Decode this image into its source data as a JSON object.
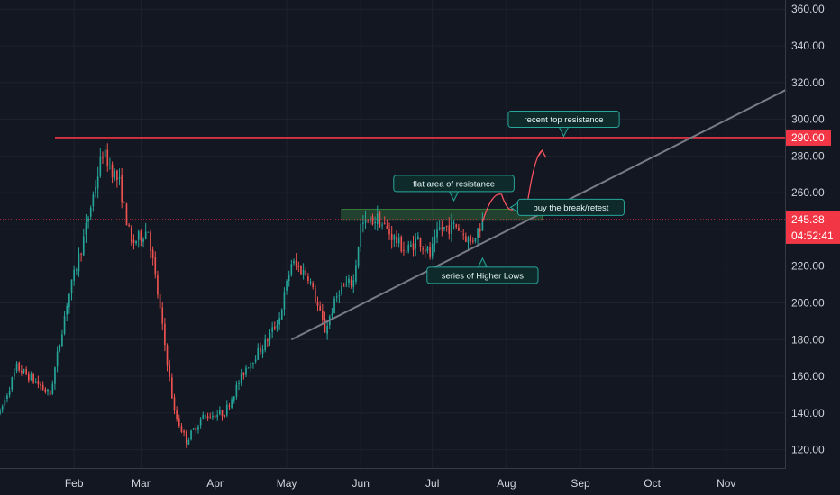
{
  "chart_data": {
    "type": "candlestick",
    "ylim": [
      110,
      365
    ],
    "x_range": [
      "2021-01-01",
      "2021-11-26"
    ],
    "y_ticks": [
      "360.00",
      "340.00",
      "320.00",
      "300.00",
      "280.00",
      "260.00",
      "240.00",
      "220.00",
      "200.00",
      "180.00",
      "160.00",
      "140.00",
      "120.00"
    ],
    "x_ticks": [
      {
        "label": "Feb",
        "date": "2021-02-01"
      },
      {
        "label": "Mar",
        "date": "2021-03-01"
      },
      {
        "label": "Apr",
        "date": "2021-04-01"
      },
      {
        "label": "May",
        "date": "2021-05-01"
      },
      {
        "label": "Jun",
        "date": "2021-06-01"
      },
      {
        "label": "Jul",
        "date": "2021-07-01"
      },
      {
        "label": "Aug",
        "date": "2021-08-01"
      },
      {
        "label": "Sep",
        "date": "2021-09-01"
      },
      {
        "label": "Oct",
        "date": "2021-10-01"
      },
      {
        "label": "Nov",
        "date": "2021-11-01"
      }
    ],
    "price_keypoints": [
      [
        "2021-01-01",
        140
      ],
      [
        "2021-01-08",
        165
      ],
      [
        "2021-01-15",
        158
      ],
      [
        "2021-01-22",
        150
      ],
      [
        "2021-01-29",
        200
      ],
      [
        "2021-02-05",
        235
      ],
      [
        "2021-02-13",
        282
      ],
      [
        "2021-02-20",
        265
      ],
      [
        "2021-02-25",
        232
      ],
      [
        "2021-03-04",
        240
      ],
      [
        "2021-03-08",
        205
      ],
      [
        "2021-03-15",
        140
      ],
      [
        "2021-03-20",
        125
      ],
      [
        "2021-03-27",
        138
      ],
      [
        "2021-04-05",
        140
      ],
      [
        "2021-04-14",
        165
      ],
      [
        "2021-04-22",
        178
      ],
      [
        "2021-04-28",
        192
      ],
      [
        "2021-05-03",
        222
      ],
      [
        "2021-05-10",
        215
      ],
      [
        "2021-05-17",
        185
      ],
      [
        "2021-05-23",
        207
      ],
      [
        "2021-05-29",
        212
      ],
      [
        "2021-06-01",
        242
      ],
      [
        "2021-06-08",
        246
      ],
      [
        "2021-06-13",
        238
      ],
      [
        "2021-06-20",
        228
      ],
      [
        "2021-06-25",
        235
      ],
      [
        "2021-06-30",
        226
      ],
      [
        "2021-07-04",
        240
      ],
      [
        "2021-07-11",
        242
      ],
      [
        "2021-07-17",
        233
      ],
      [
        "2021-07-22",
        244
      ]
    ],
    "resistance_line": {
      "value": 290.0,
      "label": "290.00",
      "color": "#f23645"
    },
    "last_price": {
      "value": 245.38,
      "label": "245.38",
      "countdown": "04:52:41",
      "color": "#f23645"
    },
    "trendline": {
      "from": [
        "2021-05-03",
        180
      ],
      "to": [
        "2021-11-26",
        316
      ],
      "color": "#787b86"
    },
    "resistance_zone": {
      "from": "2021-05-24",
      "to": "2021-08-16",
      "low": 245,
      "high": 251
    },
    "projection_path": [
      [
        "2021-07-22",
        244
      ],
      [
        "2021-07-30",
        259
      ],
      [
        "2021-08-04",
        251
      ],
      [
        "2021-08-10",
        256
      ],
      [
        "2021-08-16",
        283
      ]
    ],
    "annotations": [
      {
        "text": "recent top resistance",
        "date": "2021-08-25",
        "price": 300,
        "pointer": "down"
      },
      {
        "text": "flat area of resistance",
        "date": "2021-07-10",
        "price": 265,
        "pointer": "down"
      },
      {
        "text": "buy the break/retest",
        "date": "2021-08-28",
        "price": 252,
        "pointer": "left"
      },
      {
        "text": "series of Higher Lows",
        "date": "2021-07-22",
        "price": 215,
        "pointer": "up"
      }
    ]
  }
}
